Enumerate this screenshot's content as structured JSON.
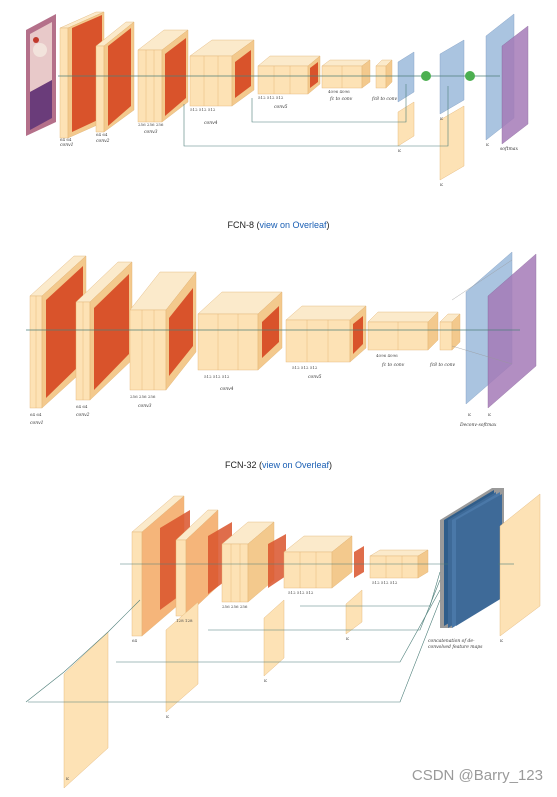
{
  "captions": {
    "fcn8": {
      "name": "FCN-8",
      "link_label": "view on Overleaf"
    },
    "fcn32": {
      "name": "FCN-32",
      "link_label": "view on Overleaf"
    }
  },
  "fcn8_labels": {
    "conv1": "conv1",
    "conv2": "conv2",
    "conv3": "conv3",
    "conv4": "conv4",
    "conv5": "conv5",
    "fc_to_conv": "fc to conv",
    "fc8_to_conv": "fc8 to conv",
    "softmax": "softmax",
    "n64a": "64 64",
    "n128": "64 64",
    "n256": "256 256 256",
    "n512a": "512 512 512",
    "n512b": "512 512 512",
    "n4096": "4096 4096",
    "k": "K"
  },
  "fcn32_labels": {
    "conv1": "conv1",
    "conv2": "conv2",
    "conv3": "conv3",
    "conv4": "conv4",
    "conv5": "conv5",
    "fc_to_conv": "fc to conv",
    "fc8_to_conv": "fc8 to conv",
    "deconv_softmax": "Deconv-softmax",
    "n64": "64 64",
    "n128": "64 64",
    "n256": "256 256 256",
    "n512a": "512 512 512",
    "n512b": "512 512 512",
    "n4096": "4096 4096",
    "k": "K"
  },
  "third_labels": {
    "stack_note_line1": "concatenation of de-",
    "stack_note_line2": "convolved feature maps",
    "n64": "64",
    "n128": "128 128",
    "n256": "256 256 256",
    "n512a": "512 512 512",
    "n512b": "512 512 512",
    "k": "K"
  },
  "watermark": "CSDN @Barry_123",
  "colors": {
    "conv_face": "#fde2b5",
    "conv_side": "#f3c98d",
    "conv_top": "#fbeacb",
    "activation": "#d9532b",
    "deconv_blue": "#aac4e0",
    "softmax_purple": "#a57bb8",
    "dark_blue": "#3e6a98",
    "arrow": "#4e7f7a",
    "sum_node": "#4caf50",
    "caption_link": "#1a5fb4"
  }
}
